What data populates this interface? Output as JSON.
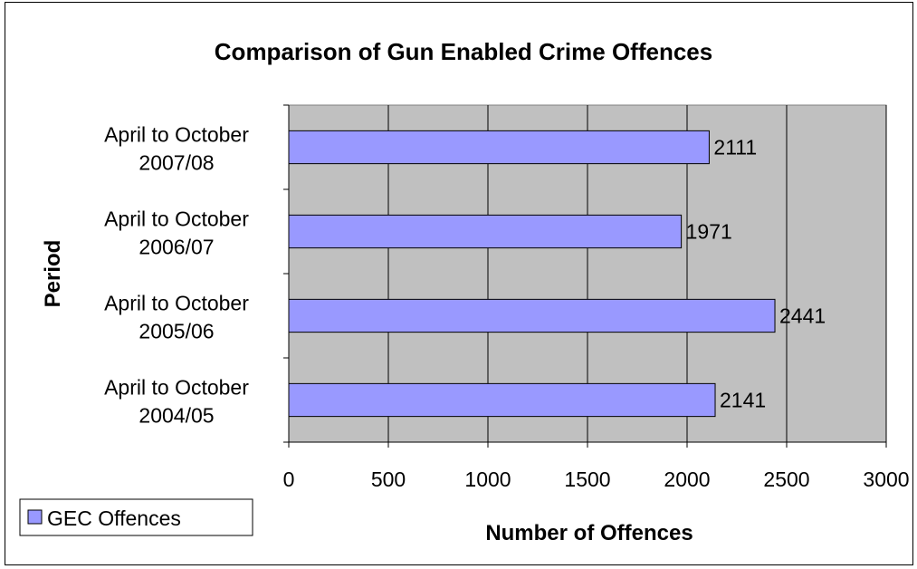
{
  "chart_data": {
    "type": "bar",
    "orientation": "horizontal",
    "title": "Comparison of Gun Enabled Crime Offences",
    "xlabel": "Number of Offences",
    "ylabel": "Period",
    "categories": [
      [
        "April to October",
        "2007/08"
      ],
      [
        "April to October",
        "2006/07"
      ],
      [
        "April to October",
        "2005/06"
      ],
      [
        "April to October",
        "2004/05"
      ]
    ],
    "series": [
      {
        "name": "GEC Offences",
        "values": [
          2111,
          1971,
          2441,
          2141
        ],
        "color": "#9999ff"
      }
    ],
    "xlim": [
      0,
      3000
    ],
    "xticks": [
      0,
      500,
      1000,
      1500,
      2000,
      2500,
      3000
    ],
    "grid": "vertical",
    "plot_background": "#c0c0c0",
    "legend_position": "bottom-left",
    "data_labels": true
  }
}
